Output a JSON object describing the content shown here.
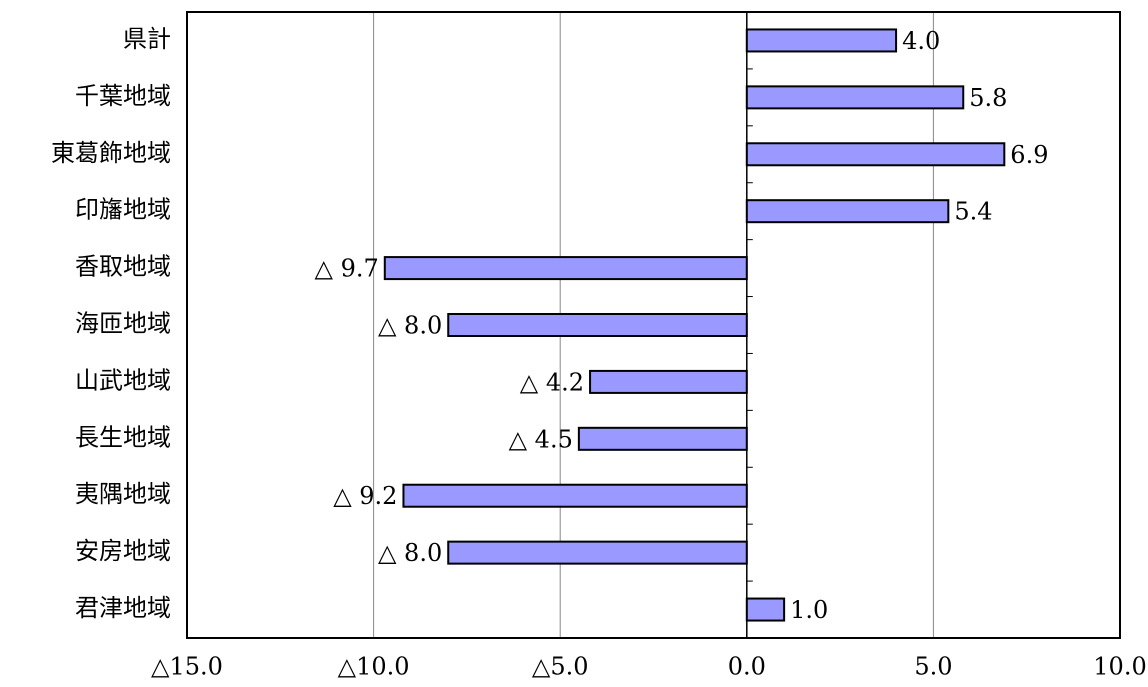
{
  "chart_data": {
    "type": "hbar",
    "categories": [
      "県計",
      "千葉地域",
      "東葛飾地域",
      "印旛地域",
      "香取地域",
      "海匝地域",
      "山武地域",
      "長生地域",
      "夷隅地域",
      "安房地域",
      "君津地域"
    ],
    "values": [
      4.0,
      5.8,
      6.9,
      5.4,
      -9.7,
      -8.0,
      -4.2,
      -4.5,
      -9.2,
      -8.0,
      1.0
    ],
    "value_labels": [
      "4.0",
      "5.8",
      "6.9",
      "5.4",
      "△ 9.7",
      "△ 8.0",
      "△ 4.2",
      "△ 4.5",
      "△ 9.2",
      "△ 8.0",
      "1.0"
    ],
    "color": "#9999ff",
    "xlim": [
      -15,
      10
    ],
    "xticks": [
      {
        "value": -15,
        "label": "△15.0"
      },
      {
        "value": -10,
        "label": "△10.0"
      },
      {
        "value": -5,
        "label": "△5.0"
      },
      {
        "value": 0,
        "label": "0.0"
      },
      {
        "value": 5,
        "label": "5.0"
      },
      {
        "value": 10,
        "label": "10.0"
      }
    ],
    "grid": true
  }
}
